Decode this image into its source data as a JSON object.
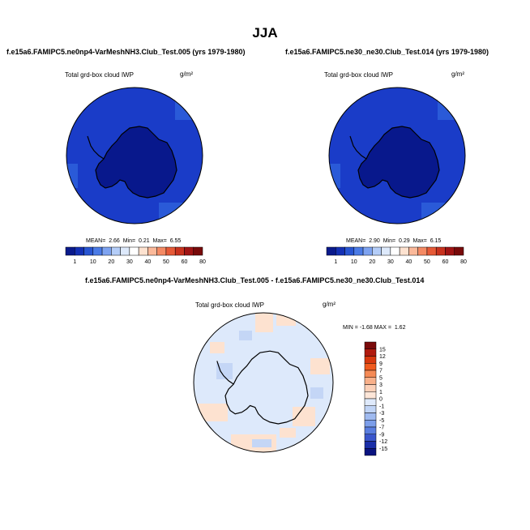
{
  "figure": {
    "title": "JJA"
  },
  "chart_data": [
    {
      "type": "heatmap",
      "case_title": "f.e15a6.FAMIPC5.ne0np4-VarMeshNH3.Club_Test.005 (yrs 1979-1980)",
      "variable": "Total grd-box cloud IWP",
      "units": "g/m²",
      "stats": {
        "mean_label": "MEAN=",
        "mean": "2.66",
        "min_label": "Min=",
        "min": "0.21",
        "max_label": "Max=",
        "max": "6.55"
      },
      "colorbar_labels": [
        "1",
        "10",
        "20",
        "30",
        "40",
        "50",
        "60",
        "80"
      ],
      "colorbar_colors": [
        "#0a1a8c",
        "#1430b4",
        "#2855d2",
        "#4b7be6",
        "#7ea3f0",
        "#b4cdf8",
        "#dde9fb",
        "#ffffff",
        "#fde2d0",
        "#fbb99a",
        "#f48a64",
        "#e65a37",
        "#c8321e",
        "#a01414",
        "#780a0a"
      ],
      "field_colors": {
        "ocean": "#1a3cc8",
        "interior": "#08188c",
        "patch": "#2a5ad8"
      }
    },
    {
      "type": "heatmap",
      "case_title": "f.e15a6.FAMIPC5.ne30_ne30.Club_Test.014 (yrs 1979-1980)",
      "variable": "Total grd-box cloud IWP",
      "units": "g/m²",
      "stats": {
        "mean_label": "MEAN=",
        "mean": "2.90",
        "min_label": "Min=",
        "min": "0.29",
        "max_label": "Max=",
        "max": "6.15"
      },
      "colorbar_labels": [
        "1",
        "10",
        "20",
        "30",
        "40",
        "50",
        "60",
        "80"
      ],
      "colorbar_colors": [
        "#0a1a8c",
        "#1430b4",
        "#2855d2",
        "#4b7be6",
        "#7ea3f0",
        "#b4cdf8",
        "#dde9fb",
        "#ffffff",
        "#fde2d0",
        "#fbb99a",
        "#f48a64",
        "#e65a37",
        "#c8321e",
        "#a01414",
        "#780a0a"
      ],
      "field_colors": {
        "ocean": "#1a3cc8",
        "interior": "#08188c",
        "patch": "#2a5ad8"
      }
    },
    {
      "type": "heatmap",
      "case_title": "f.e15a6.FAMIPC5.ne0np4-VarMeshNH3.Club_Test.005 - f.e15a6.FAMIPC5.ne30_ne30.Club_Test.014",
      "variable": "Total grd-box cloud IWP",
      "units": "g/m²",
      "stats": {
        "min_label": "MIN =",
        "min": "-1.68",
        "max_label": "MAX =",
        "max": "1.62"
      },
      "colorbar_labels": [
        "15",
        "12",
        "9",
        "7",
        "5",
        "3",
        "1",
        "0",
        "-1",
        "-3",
        "-5",
        "-7",
        "-9",
        "-12",
        "-15"
      ],
      "colorbar_colors": [
        "#7a0a0a",
        "#b01a0e",
        "#d8380e",
        "#f05a1e",
        "#f58a55",
        "#f8b08a",
        "#fbd0b8",
        "#fde6d8",
        "#dfeafb",
        "#c0d4f6",
        "#9fbaf0",
        "#7c9eea",
        "#5a7ee0",
        "#3a56cc",
        "#1a2ea8",
        "#0a1480"
      ],
      "field_colors": {
        "base": "#dde9fb",
        "warm": "#fde2d0",
        "cool": "#c4d6f6",
        "warm2": "#fbd0b8"
      }
    }
  ]
}
